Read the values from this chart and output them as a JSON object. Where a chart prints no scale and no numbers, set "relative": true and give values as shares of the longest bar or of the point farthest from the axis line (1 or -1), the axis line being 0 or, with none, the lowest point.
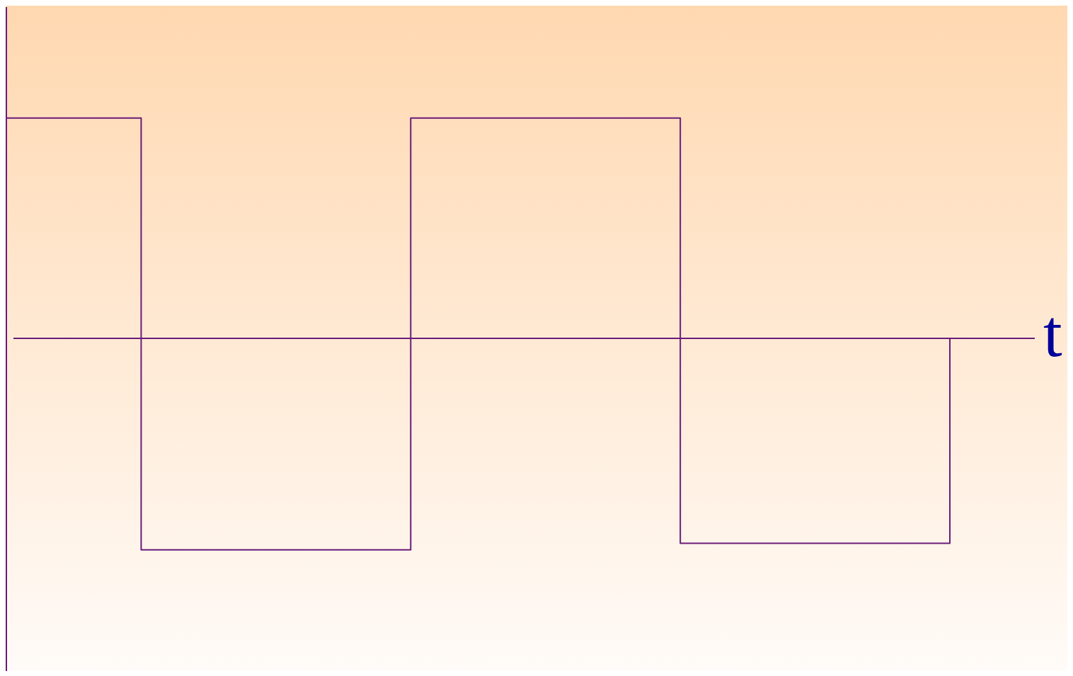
{
  "chart_data": {
    "type": "step",
    "relative": true,
    "xlabel": "t",
    "categories": [
      null,
      null,
      null,
      null,
      null,
      null,
      null,
      null
    ],
    "legend": false,
    "ref_lines": [
      {
        "axis": "y",
        "value": 0,
        "color": "#6a1b7a"
      }
    ],
    "marker": "none",
    "line_style": "solid",
    "series": [
      {
        "color": "#6a1b7a",
        "values": [
          1,
          -0.96,
          -0.96,
          1,
          1,
          -0.93,
          -0.93,
          0
        ]
      }
    ]
  }
}
